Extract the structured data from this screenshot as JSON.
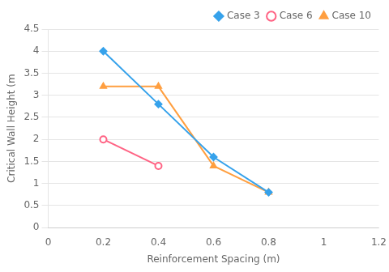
{
  "chart_data": {
    "type": "line",
    "xlabel": "Reinforcement Spacing (m)",
    "ylabel": "Critical Wall Height (m",
    "series": [
      {
        "name": "Case 3",
        "marker": "diamond",
        "x": [
          0.2,
          0.4,
          0.6,
          0.8
        ],
        "values": [
          4.0,
          2.8,
          1.6,
          0.8
        ]
      },
      {
        "name": "Case 6",
        "marker": "open_circle",
        "x": [
          0.2,
          0.4
        ],
        "values": [
          2.0,
          1.4
        ]
      },
      {
        "name": "Case 10",
        "marker": "triangle",
        "x": [
          0.2,
          0.4,
          0.6,
          0.8
        ],
        "values": [
          3.2,
          3.2,
          1.4,
          0.8
        ]
      }
    ],
    "xlim": [
      0,
      1.2
    ],
    "ylim": [
      0,
      4.5
    ],
    "xticks": [
      0,
      0.2,
      0.4,
      0.6,
      0.8,
      1.0,
      1.2
    ],
    "yticks": [
      0,
      0.5,
      1.0,
      1.5,
      2.0,
      2.5,
      3.0,
      3.5,
      4.0,
      4.5
    ],
    "grid": "y",
    "legend": "upper right"
  }
}
